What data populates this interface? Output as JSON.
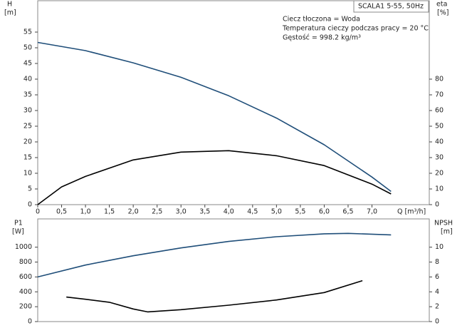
{
  "chart_data": [
    {
      "type": "line",
      "title": "SCALA1 5-55, 50Hz",
      "annotations": [
        "Ciecz tłoczona = Woda",
        "Temperatura cieczy podczas pracy = 20 °C",
        "Gęstość = 998.2 kg/m³"
      ],
      "y_label": [
        "H",
        "[m]"
      ],
      "y2_label": [
        "eta",
        "[%]"
      ],
      "x_label": "Q [m³/h]",
      "xlim": [
        0,
        8.2
      ],
      "xticks": [
        0,
        {
          "value": 0.5,
          "label": "0,5"
        },
        {
          "value": 1,
          "label": "1,0"
        },
        {
          "value": 1.5,
          "label": "1,5"
        },
        {
          "value": 2,
          "label": "2,0"
        },
        {
          "value": 2.5,
          "label": "2,5"
        },
        {
          "value": 3,
          "label": "3,0"
        },
        {
          "value": 3.5,
          "label": "3,5"
        },
        {
          "value": 4,
          "label": "4,0"
        },
        {
          "value": 4.5,
          "label": "4,5"
        },
        {
          "value": 5,
          "label": "5,0"
        },
        {
          "value": 5.5,
          "label": "5,5"
        },
        {
          "value": 6,
          "label": "6,0"
        },
        {
          "value": 6.5,
          "label": "6,5"
        },
        {
          "value": 7,
          "label": "7,0"
        }
      ],
      "ylim": [
        0,
        65
      ],
      "yticks": [
        0,
        5,
        10,
        15,
        20,
        25,
        30,
        35,
        40,
        45,
        50,
        55
      ],
      "y2lim": [
        0,
        130
      ],
      "y2ticks": [
        0,
        10,
        20,
        30,
        40,
        50,
        60,
        70,
        80
      ],
      "series": [
        {
          "name": "H",
          "color": "#1f4e79",
          "x": [
            0,
            1,
            2,
            3,
            4,
            5,
            6,
            7,
            7.4
          ],
          "values": [
            51.7,
            49.1,
            45.2,
            40.6,
            34.7,
            27.6,
            19.1,
            8.8,
            4.2
          ]
        },
        {
          "name": "eta",
          "color": "#000000",
          "axis": "y2",
          "x": [
            0,
            0.5,
            1,
            2,
            3,
            4,
            5,
            6,
            7,
            7.4
          ],
          "values": [
            0,
            11.3,
            18,
            28.5,
            33.5,
            34.4,
            31.2,
            24.9,
            13.1,
            6.8
          ]
        }
      ]
    },
    {
      "type": "line",
      "y_label": [
        "P1",
        "[W]"
      ],
      "y2_label": [
        "NPSH",
        "[m]"
      ],
      "xlim": [
        0,
        8.2
      ],
      "ylim": [
        0,
        1380
      ],
      "yticks": [
        0,
        200,
        400,
        600,
        800,
        1000
      ],
      "y2lim": [
        0,
        13.8
      ],
      "y2ticks": [
        0,
        2,
        4,
        6,
        8,
        10
      ],
      "series": [
        {
          "name": "P1",
          "color": "#1f4e79",
          "x": [
            0,
            1,
            2,
            3,
            4,
            5,
            6,
            6.5,
            7.4
          ],
          "values": [
            600,
            760,
            885,
            990,
            1077,
            1140,
            1180,
            1185,
            1165
          ]
        },
        {
          "name": "NPSH",
          "color": "#000000",
          "axis": "y2",
          "x": [
            0.6,
            1,
            1.5,
            2,
            2.3,
            3,
            4,
            5,
            6,
            6.8
          ],
          "values": [
            3.3,
            3.0,
            2.6,
            1.7,
            1.3,
            1.6,
            2.2,
            2.9,
            3.9,
            5.5
          ]
        }
      ]
    }
  ]
}
